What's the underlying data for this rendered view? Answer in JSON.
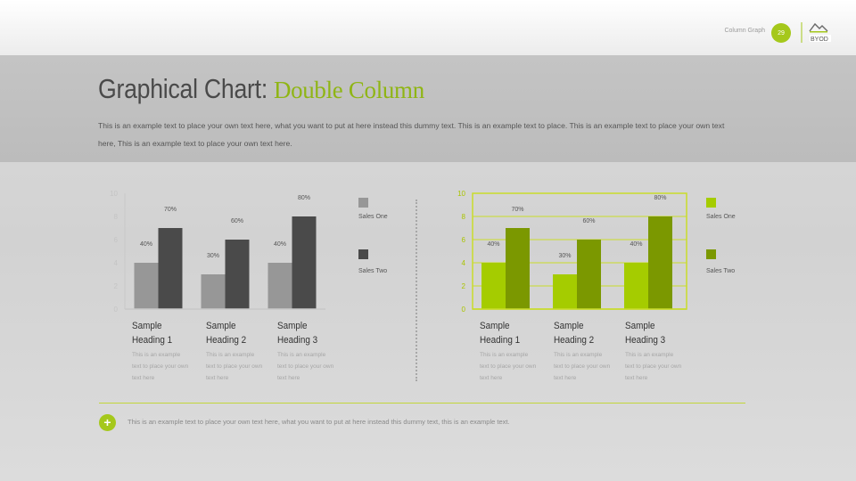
{
  "header": {
    "page_label": "Column Graph",
    "page_number": "29",
    "logo_text": "BYOD"
  },
  "title": {
    "main": "Graphical Chart:",
    "accent": "Double Column"
  },
  "intro_text": "This is an example text to place your own text here, what you want to put at here instead this dummy text. This is an example text to place. This is an example text to place your own text here, This is an example text to place your own text here.",
  "colors": {
    "left_series_one": "#979797",
    "left_series_two": "#4a4a4a",
    "right_series_one": "#a5cc00",
    "right_series_two": "#7b9800",
    "accent": "#a5c81b"
  },
  "chart_data": [
    {
      "type": "bar",
      "categories": [
        "Sample Heading 1",
        "Sample Heading 2",
        "Sample Heading 3"
      ],
      "series": [
        {
          "name": "Sales One",
          "values": [
            4,
            3,
            4
          ],
          "labels": [
            "40%",
            "30%",
            "40%"
          ]
        },
        {
          "name": "Sales Two",
          "values": [
            7,
            6,
            8
          ],
          "labels": [
            "70%",
            "60%",
            "80%"
          ]
        }
      ],
      "ylim": [
        0,
        10
      ],
      "yticks": [
        "0",
        "2",
        "4",
        "6",
        "8",
        "10"
      ],
      "grid": false,
      "legend": "right"
    },
    {
      "type": "bar",
      "categories": [
        "Sample Heading 1",
        "Sample Heading 2",
        "Sample Heading 3"
      ],
      "series": [
        {
          "name": "Sales One",
          "values": [
            4,
            3,
            4
          ],
          "labels": [
            "40%",
            "30%",
            "40%"
          ]
        },
        {
          "name": "Sales Two",
          "values": [
            7,
            6,
            8
          ],
          "labels": [
            "70%",
            "60%",
            "80%"
          ]
        }
      ],
      "ylim": [
        0,
        10
      ],
      "yticks": [
        "0",
        "2",
        "4",
        "6",
        "8",
        "10"
      ],
      "grid": true,
      "legend": "right"
    }
  ],
  "columns": [
    {
      "heading_line1": "Sample",
      "heading_line2": "Heading 1",
      "text": "This is an example text to place your own text here"
    },
    {
      "heading_line1": "Sample",
      "heading_line2": "Heading 2",
      "text": "This is an example text to place your own text here"
    },
    {
      "heading_line1": "Sample",
      "heading_line2": "Heading 3",
      "text": "This is an example text to place your own text here"
    }
  ],
  "footer_text": "This is an example text to place your own text here, what you want to put at here instead this dummy text, this is an example text."
}
